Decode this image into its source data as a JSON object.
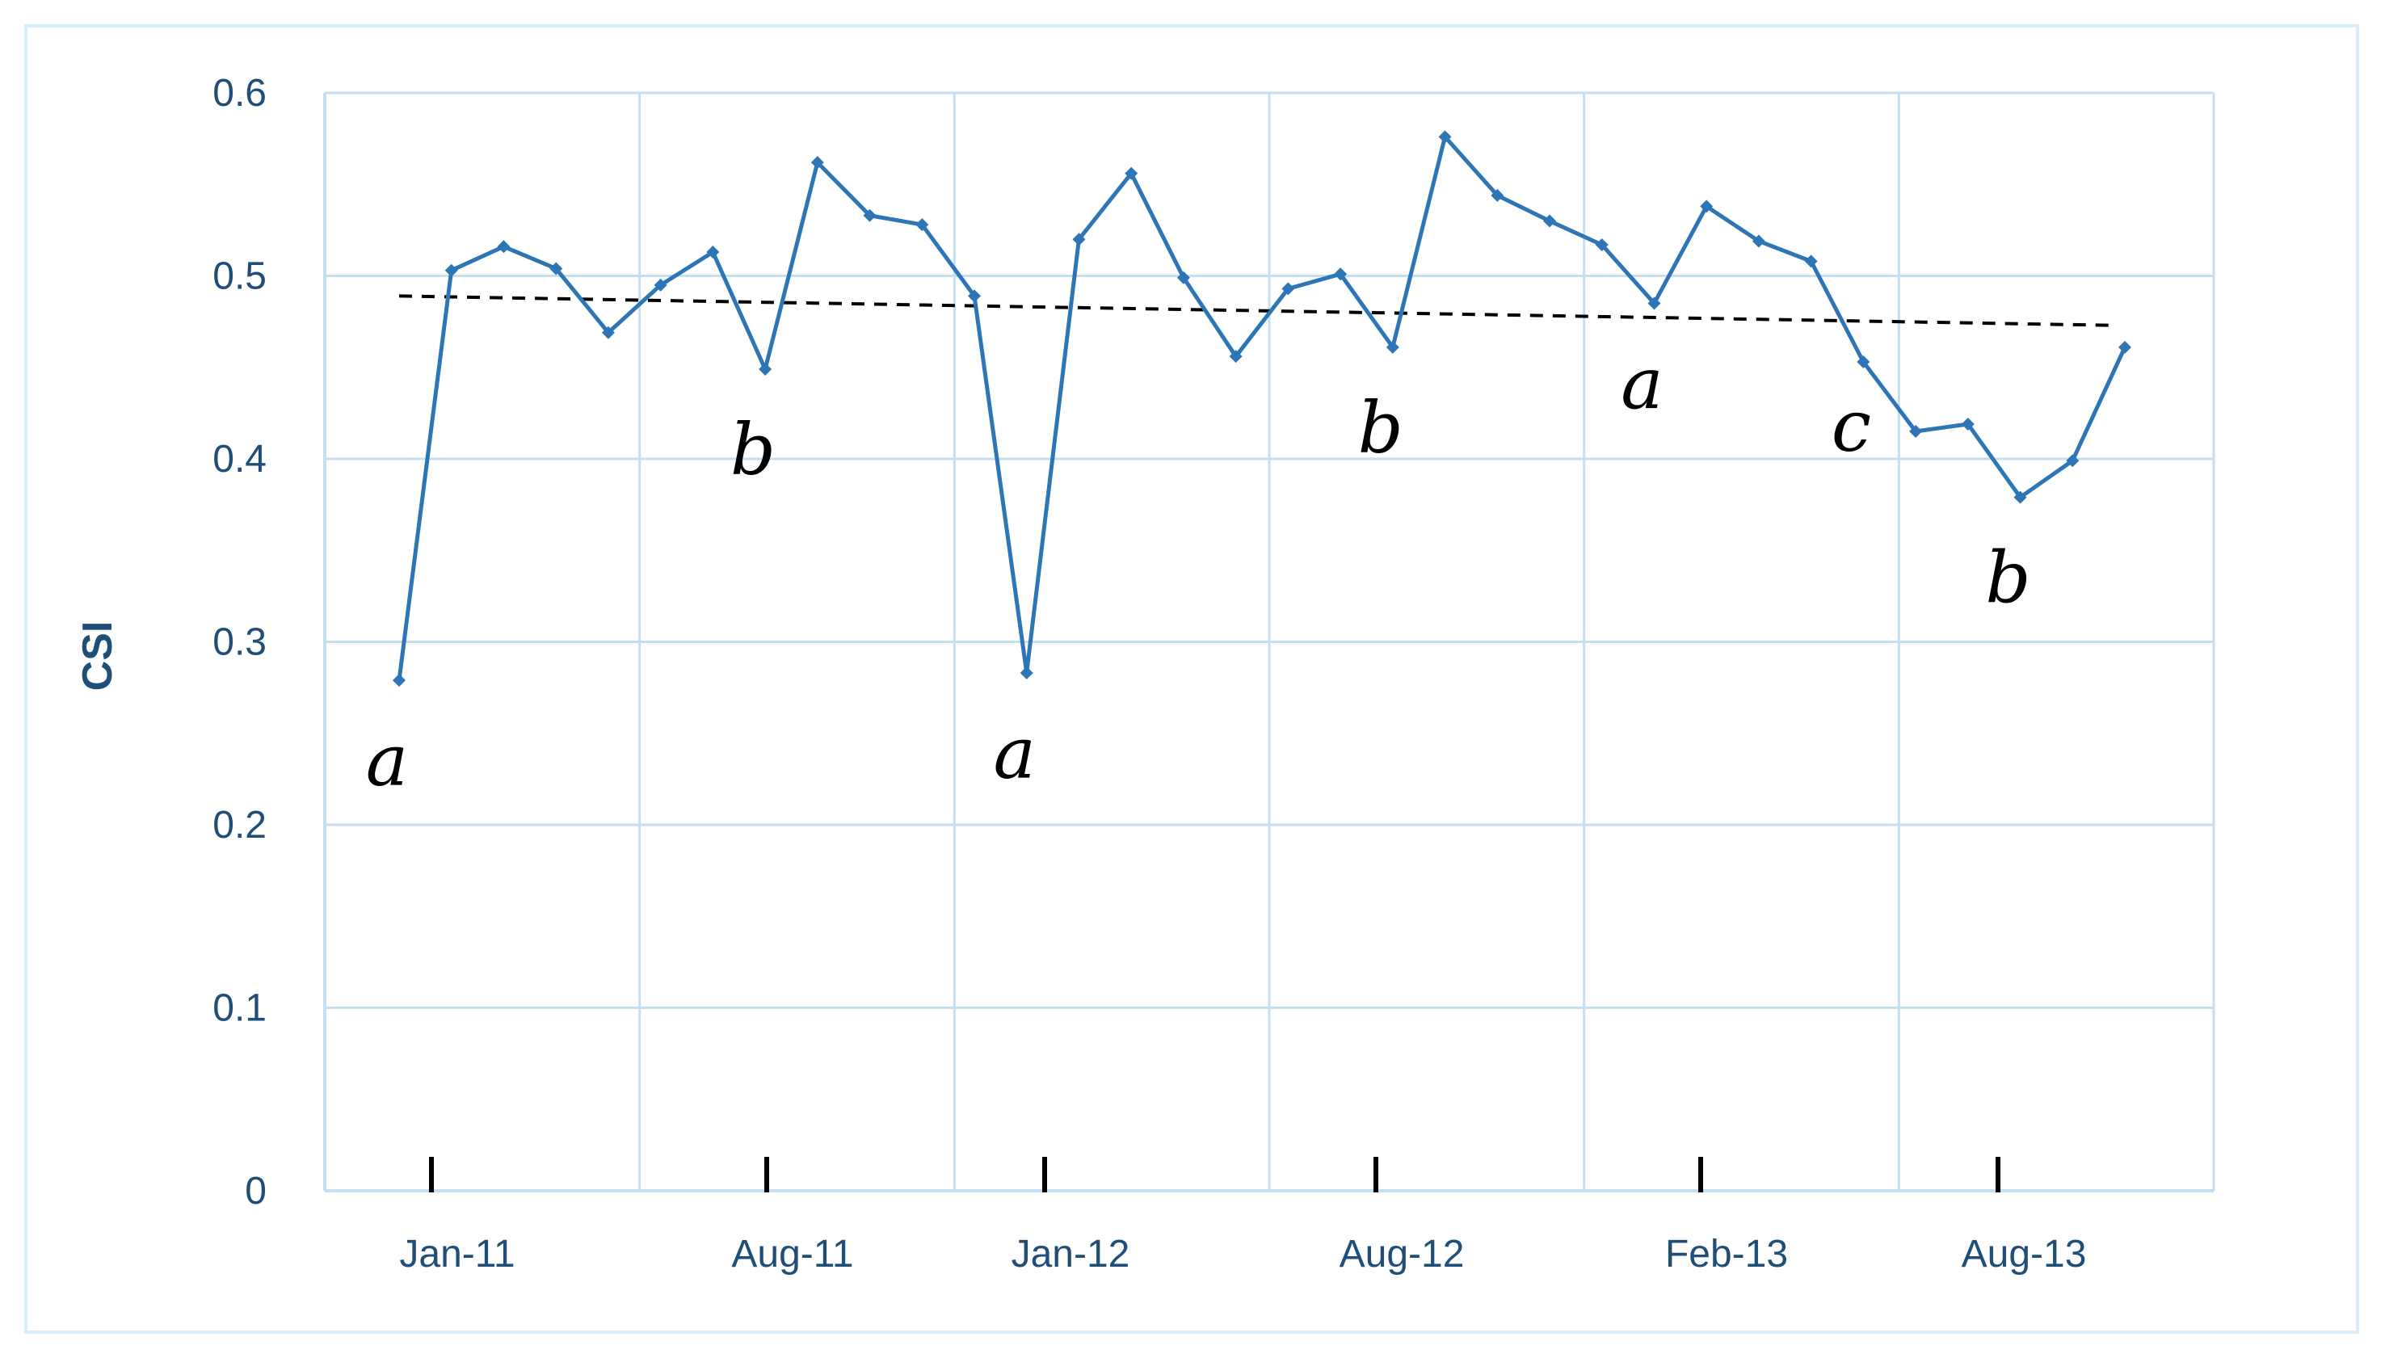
{
  "chart_data": {
    "type": "line",
    "title": "",
    "xlabel": "",
    "ylabel": "CSI",
    "ylim": [
      0,
      0.6
    ],
    "yticks": [
      0,
      0.1,
      0.2,
      0.3,
      0.4,
      0.5,
      0.6
    ],
    "ytick_labels": [
      "0",
      "0.1",
      "0.2",
      "0.3",
      "0.4",
      "0.5",
      "0.6"
    ],
    "xtick_labels": [
      "Jan-11",
      "Aug-11",
      "Jan-12",
      "Aug-12",
      "Feb-13",
      "Aug-13"
    ],
    "grid": true,
    "legend": "none",
    "colors": {
      "series": "#2e75b6",
      "grid": "#c5dff0",
      "axis_text": "#1f4e79",
      "trend": "#000000",
      "highlight": "#ff0000"
    },
    "series": [
      {
        "values": [
          0.279,
          0.503,
          0.516,
          0.504,
          0.469,
          0.495,
          0.513,
          0.449,
          0.562,
          0.533,
          0.528,
          0.489,
          0.283,
          0.52,
          0.556,
          0.499,
          0.456,
          0.493,
          0.501,
          0.461,
          0.576,
          0.544,
          0.53,
          0.517,
          0.485,
          0.538,
          0.519,
          0.508,
          0.453,
          0.415,
          0.419,
          0.379,
          0.399,
          0.461
        ]
      }
    ],
    "trendline": {
      "style": "dashed",
      "start": 0.489,
      "end": 0.473
    },
    "annotations": [
      {
        "text": "a",
        "at_point": 0,
        "color": "#000000"
      },
      {
        "text": "b",
        "at_point": 7,
        "color": "#000000"
      },
      {
        "text": "a",
        "at_point": 12,
        "color": "#000000"
      },
      {
        "text": "b",
        "at_point": 19,
        "color": "#000000"
      },
      {
        "text": "a",
        "at_point": 24,
        "color": "#000000"
      },
      {
        "text": "c",
        "at_point": 28,
        "color": "#ff0000"
      },
      {
        "text": "b",
        "at_point": 31,
        "color": "#000000"
      }
    ]
  }
}
